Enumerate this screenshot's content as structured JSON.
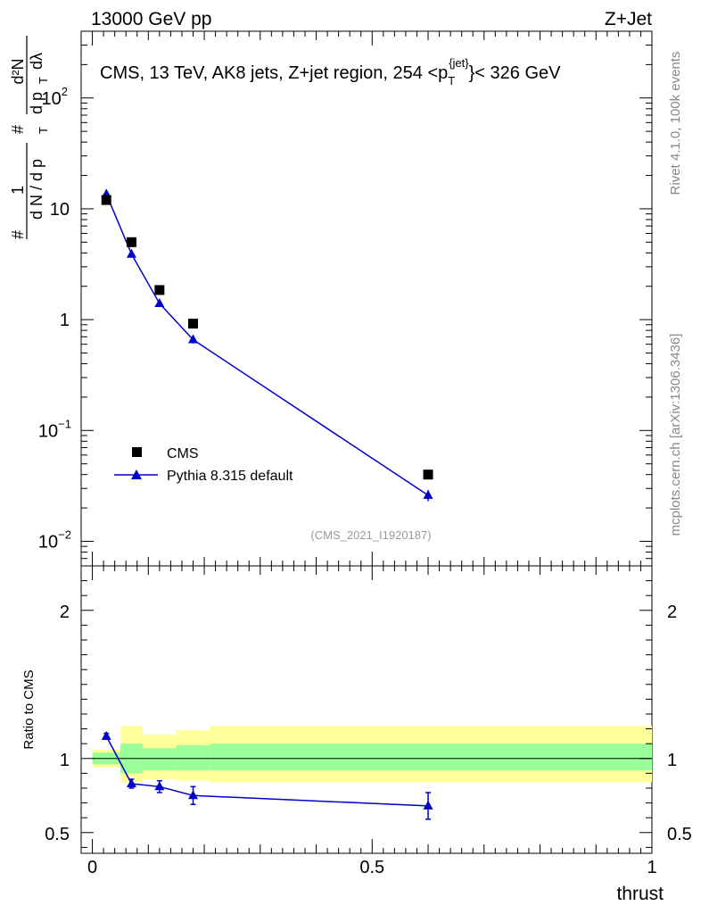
{
  "header": {
    "left": "13000 GeV pp",
    "right": "Z+Jet"
  },
  "side_text": {
    "top": "Rivet 4.1.0,  100k events",
    "bottom": "mcplots.cern.ch [arXiv:1306.3436]"
  },
  "watermark": "(CMS_2021_I1920187)",
  "colors": {
    "mc": "#0000cc",
    "data": "#000000",
    "band_inner": "#99ff99",
    "band_outer": "#ffff99"
  },
  "chart_data": [
    {
      "type": "scatter",
      "panel": "main",
      "title_parts": {
        "prefix": "CMS, 13 TeV, AK8 jets, Z+jet region, 254 <p",
        "sub": "T",
        "sup": "{jet}",
        "suffix": "}< 326 GeV"
      },
      "ylabel": "# (1/(dN/dp_T)) (d²N/(dp_T dλ))",
      "yscale": "log",
      "ylim": [
        0.006,
        400
      ],
      "xlim": [
        -0.02,
        1.0
      ],
      "yticks": [
        {
          "v": 0.01,
          "base": "10",
          "exp": "−2"
        },
        {
          "v": 0.1,
          "base": "10",
          "exp": "−1"
        },
        {
          "v": 1,
          "base": "1",
          "exp": ""
        },
        {
          "v": 10,
          "base": "10",
          "exp": ""
        },
        {
          "v": 100,
          "base": "10",
          "exp": "2"
        }
      ],
      "legend": {
        "position": "lower-left",
        "entries": [
          "CMS",
          "Pythia 8.315 default"
        ]
      },
      "series": [
        {
          "name": "CMS",
          "marker": "square",
          "x": [
            0.025,
            0.07,
            0.12,
            0.18,
            0.6
          ],
          "y": [
            12.0,
            5.0,
            1.85,
            0.92,
            0.04
          ]
        },
        {
          "name": "Pythia 8.315 default",
          "marker": "triangle",
          "x": [
            0.025,
            0.07,
            0.12,
            0.18,
            0.6
          ],
          "y": [
            13.6,
            3.9,
            1.4,
            0.66,
            0.026
          ],
          "err": [
            0.4,
            0.15,
            0.07,
            0.05,
            0.003
          ]
        }
      ]
    },
    {
      "type": "line",
      "panel": "ratio",
      "ylabel": "Ratio to CMS",
      "xlabel": "thrust",
      "xlim": [
        -0.02,
        1.0
      ],
      "ylim": [
        0.36,
        2.3
      ],
      "yticks": [
        0.5,
        1,
        2
      ],
      "ytick_labels": [
        "0.5",
        "1",
        "2"
      ],
      "xticks": [
        0,
        0.5,
        1
      ],
      "xtick_labels": [
        "0",
        "0.5",
        "1"
      ],
      "bands": {
        "edges": [
          0.0,
          0.05,
          0.09,
          0.15,
          0.21,
          1.0
        ],
        "inner": [
          [
            0.96,
            1.04
          ],
          [
            0.9,
            1.1
          ],
          [
            0.92,
            1.07
          ],
          [
            0.92,
            1.09
          ],
          [
            0.92,
            1.1
          ]
        ],
        "outer": [
          [
            0.94,
            1.06
          ],
          [
            0.84,
            1.22
          ],
          [
            0.86,
            1.16
          ],
          [
            0.85,
            1.19
          ],
          [
            0.84,
            1.22
          ]
        ]
      },
      "series": [
        {
          "name": "Pythia 8.315 default",
          "x": [
            0.025,
            0.07,
            0.12,
            0.18,
            0.6
          ],
          "y": [
            1.15,
            0.83,
            0.81,
            0.75,
            0.68
          ],
          "err": [
            0.02,
            0.03,
            0.04,
            0.06,
            0.09
          ]
        }
      ]
    }
  ]
}
